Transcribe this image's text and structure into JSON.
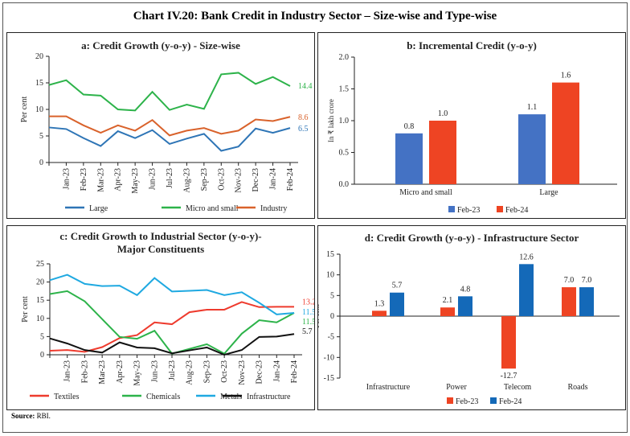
{
  "title": "Chart IV.20: Bank Credit in Industry Sector – Size-wise and Type-wise",
  "source_label": "Source:",
  "source_text": "RBI.",
  "chart_data": [
    {
      "type": "line",
      "title": "a: Credit Growth (y-o-y) - Size-wise",
      "ylabel": "Per cent",
      "ylim": [
        0,
        20
      ],
      "yticks": [
        0,
        5,
        10,
        15,
        20
      ],
      "categories": [
        "",
        "Jan-23",
        "Feb-23",
        "Mar-23",
        "Apr-23",
        "May-23",
        "Jun-23",
        "Jul-23",
        "Aug-23",
        "Sep-23",
        "Oct-23",
        "Nov-23",
        "Dec-23",
        "Jan-24",
        "Feb-24"
      ],
      "series": [
        {
          "name": "Large",
          "color": "#2e75b6",
          "end_label": "6.5",
          "values": [
            6.6,
            6.3,
            4.6,
            3.1,
            5.9,
            4.6,
            6.1,
            3.5,
            4.5,
            5.4,
            2.2,
            3.0,
            6.4,
            5.6,
            6.5
          ]
        },
        {
          "name": "Micro and small",
          "color": "#2db34a",
          "end_label": "14.4",
          "values": [
            14.6,
            15.5,
            12.8,
            12.6,
            10.0,
            9.8,
            13.3,
            9.9,
            10.9,
            10.1,
            16.6,
            16.9,
            14.8,
            16.1,
            14.4
          ]
        },
        {
          "name": "Industry",
          "color": "#d9622b",
          "end_label": "8.6",
          "values": [
            8.7,
            8.7,
            7.0,
            5.6,
            7.0,
            6.0,
            8.0,
            5.1,
            6.0,
            6.5,
            5.4,
            6.0,
            8.1,
            7.8,
            8.6
          ]
        }
      ],
      "legend": "bottom"
    },
    {
      "type": "bar",
      "title": "b: Incremental Credit (y-o-y)",
      "ylabel": "In ₹ lakh crore",
      "ylim": [
        0,
        2.0
      ],
      "yticks": [
        "0.0",
        "0.5",
        "1.0",
        "1.5",
        "2.0"
      ],
      "categories": [
        "Micro and small",
        "Large"
      ],
      "series": [
        {
          "name": "Feb-23",
          "color": "#4472c4",
          "values": [
            0.8,
            1.1
          ],
          "labels": [
            "0.8",
            "1.1"
          ]
        },
        {
          "name": "Feb-24",
          "color": "#ee4423",
          "values": [
            1.0,
            1.6
          ],
          "labels": [
            "1.0",
            "1.6"
          ]
        }
      ],
      "legend": "bottom"
    },
    {
      "type": "line",
      "title": "c: Credit Growth to Industrial Sector (y-o-y)-",
      "title2": "Major Constituents",
      "ylabel": "Per cent",
      "ylim": [
        0,
        25
      ],
      "yticks": [
        0,
        5,
        10,
        15,
        20,
        25
      ],
      "categories": [
        "",
        "Jan-23",
        "Feb-23",
        "Mar-23",
        "Apr-23",
        "May-23",
        "Jun-23",
        "Jul-23",
        "Aug-23",
        "Sep-23",
        "Oct-23",
        "Nov-23",
        "Dec-23",
        "Jan-24",
        "Feb-24"
      ],
      "series": [
        {
          "name": "Textiles",
          "color": "#ee3b2e",
          "end_label": "13.2",
          "values": [
            1.1,
            1.3,
            0.8,
            2.1,
            4.6,
            5.4,
            8.9,
            8.4,
            11.7,
            12.4,
            12.4,
            14.5,
            13.1,
            13.2,
            13.2
          ]
        },
        {
          "name": "Chemicals",
          "color": "#2db34a",
          "end_label": "11.5",
          "values": [
            16.7,
            17.5,
            14.7,
            9.8,
            4.9,
            4.4,
            6.6,
            0.3,
            1.6,
            2.9,
            0.3,
            5.8,
            9.5,
            8.9,
            11.5
          ]
        },
        {
          "name": "Metals",
          "color": "#1fa9e1",
          "end_label": "11.5",
          "values": [
            20.5,
            22.0,
            19.5,
            18.9,
            19.0,
            16.4,
            21.1,
            17.4,
            17.6,
            17.8,
            16.4,
            17.2,
            14.3,
            11.1,
            11.5
          ]
        },
        {
          "name": "Infrastructure",
          "color": "#111111",
          "end_label": "5.7",
          "values": [
            4.5,
            3.1,
            1.3,
            0.6,
            3.4,
            2.0,
            1.8,
            0.4,
            1.2,
            2.0,
            0.0,
            1.3,
            4.9,
            5.0,
            5.7
          ]
        }
      ],
      "legend": "bottom"
    },
    {
      "type": "bar",
      "title": "d: Credit Growth (y-o-y) - Infrastructure Sector",
      "ylabel": "Per cent",
      "ylim": [
        -15,
        15
      ],
      "yticks": [
        -15,
        -10,
        -5,
        0,
        5,
        10,
        15
      ],
      "categories": [
        "Infrastructure",
        "Power",
        "Telecom",
        "Roads"
      ],
      "series": [
        {
          "name": "Feb-23",
          "color": "#ee4423",
          "values": [
            1.3,
            2.1,
            -12.7,
            7.0
          ],
          "labels": [
            "1.3",
            "2.1",
            "-12.7",
            "7.0"
          ]
        },
        {
          "name": "Feb-24",
          "color": "#1469b8",
          "values": [
            5.7,
            4.8,
            12.6,
            7.0
          ],
          "labels": [
            "5.7",
            "4.8",
            "12.6",
            "7.0"
          ]
        }
      ],
      "legend": "bottom"
    }
  ]
}
